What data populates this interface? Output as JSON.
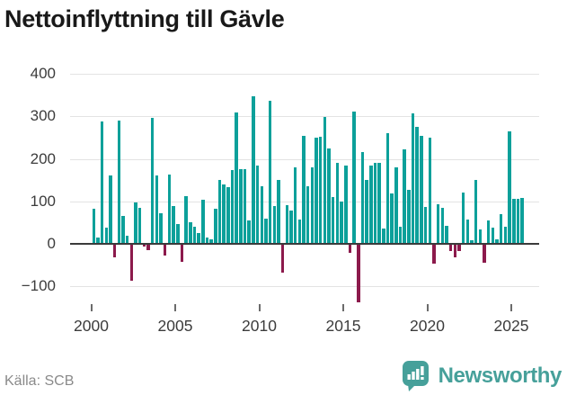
{
  "title": "Nettoinflyttning till Gävle",
  "source": "Källa: SCB",
  "branding": {
    "name": "Newsworthy",
    "logo_icon": "bar-chart-speech-bubble-icon",
    "color": "#46a09a"
  },
  "colors": {
    "positive_bar": "#0ca09a",
    "negative_bar": "#8c1a4c",
    "gridline": "#e3e3e3",
    "zero_line": "#3b3b3b",
    "axis_text": "#3c3c3c",
    "title_text": "#191919",
    "source_text": "#8a8a8a"
  },
  "chart_data": {
    "type": "bar",
    "title": "Nettoinflyttning till Gävle",
    "xlabel": "",
    "ylabel": "",
    "frequency": "quarterly",
    "start_year": 2000,
    "start_quarter": 1,
    "x_ticks": [
      2000,
      2005,
      2010,
      2015,
      2020,
      2025
    ],
    "y_ticks": [
      400,
      300,
      200,
      100,
      0,
      -100
    ],
    "y_tick_labels": [
      "400",
      "300",
      "200",
      "100",
      "0",
      "−100"
    ],
    "ylim": [
      -150,
      400
    ],
    "grid": true,
    "legend": "none",
    "values": [
      82,
      15,
      287,
      38,
      160,
      -30,
      290,
      65,
      18,
      -85,
      97,
      85,
      -5,
      -12,
      297,
      160,
      72,
      -25,
      162,
      88,
      46,
      -40,
      112,
      50,
      41,
      25,
      104,
      15,
      10,
      82,
      150,
      140,
      133,
      173,
      310,
      175,
      175,
      55,
      347,
      184,
      135,
      60,
      337,
      88,
      150,
      -65,
      90,
      78,
      180,
      58,
      255,
      135,
      180,
      250,
      252,
      298,
      225,
      110,
      190,
      100,
      185,
      -20,
      312,
      -135,
      215,
      150,
      185,
      190,
      190,
      35,
      260,
      119,
      180,
      41,
      222,
      128,
      307,
      276,
      253,
      87,
      250,
      -45,
      93,
      85,
      42,
      -15,
      -30,
      -15,
      120,
      57,
      9,
      150,
      34,
      -42,
      54,
      38,
      10,
      69,
      41,
      265,
      106,
      105,
      107
    ]
  }
}
